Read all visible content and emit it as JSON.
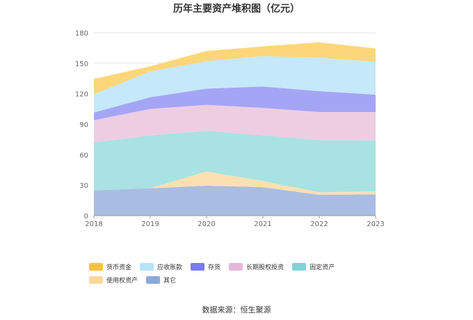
{
  "chart_data": {
    "type": "area",
    "stacked": true,
    "title": "历年主要资产堆积图（亿元）",
    "categories": [
      "2018",
      "2019",
      "2020",
      "2021",
      "2022",
      "2023"
    ],
    "y_ticks": [
      "0",
      "30",
      "60",
      "90",
      "120",
      "150",
      "180"
    ],
    "ylim": [
      0,
      180
    ],
    "grid": true,
    "legend_position": "bottom",
    "series": [
      {
        "name": "其它",
        "color": "#a9bde3",
        "values": [
          25,
          27,
          29.5,
          28,
          20.5,
          21
        ]
      },
      {
        "name": "使用权资产",
        "color": "#fce0b0",
        "values": [
          0,
          0,
          14,
          6,
          2.5,
          3
        ]
      },
      {
        "name": "固定资产",
        "color": "#a9e2e2",
        "values": [
          47,
          52,
          40,
          45,
          51.5,
          50
        ]
      },
      {
        "name": "长期股权投资",
        "color": "#eecde3",
        "values": [
          22,
          26,
          25.5,
          27,
          27.5,
          28
        ]
      },
      {
        "name": "存货",
        "color": "#a5a5f5",
        "values": [
          7.5,
          11.5,
          16,
          21,
          20.5,
          17
        ]
      },
      {
        "name": "应收账款",
        "color": "#c5e8fa",
        "values": [
          18,
          25.5,
          27,
          30,
          33,
          32.5
        ]
      },
      {
        "name": "货币资金",
        "color": "#fdd67a",
        "values": [
          15,
          5,
          10,
          9.5,
          15,
          13
        ]
      }
    ],
    "legend": [
      {
        "name": "货币资金",
        "color": "#f8c23d"
      },
      {
        "name": "应收账款",
        "color": "#b8e3f8"
      },
      {
        "name": "存货",
        "color": "#7b7bea"
      },
      {
        "name": "长期股权投资",
        "color": "#e6b8d8"
      },
      {
        "name": "固定资产",
        "color": "#7fd3d6"
      },
      {
        "name": "使用权资产",
        "color": "#fbd79e"
      },
      {
        "name": "其它",
        "color": "#8eaadc"
      }
    ]
  },
  "source": "数据来源：恒生聚源"
}
